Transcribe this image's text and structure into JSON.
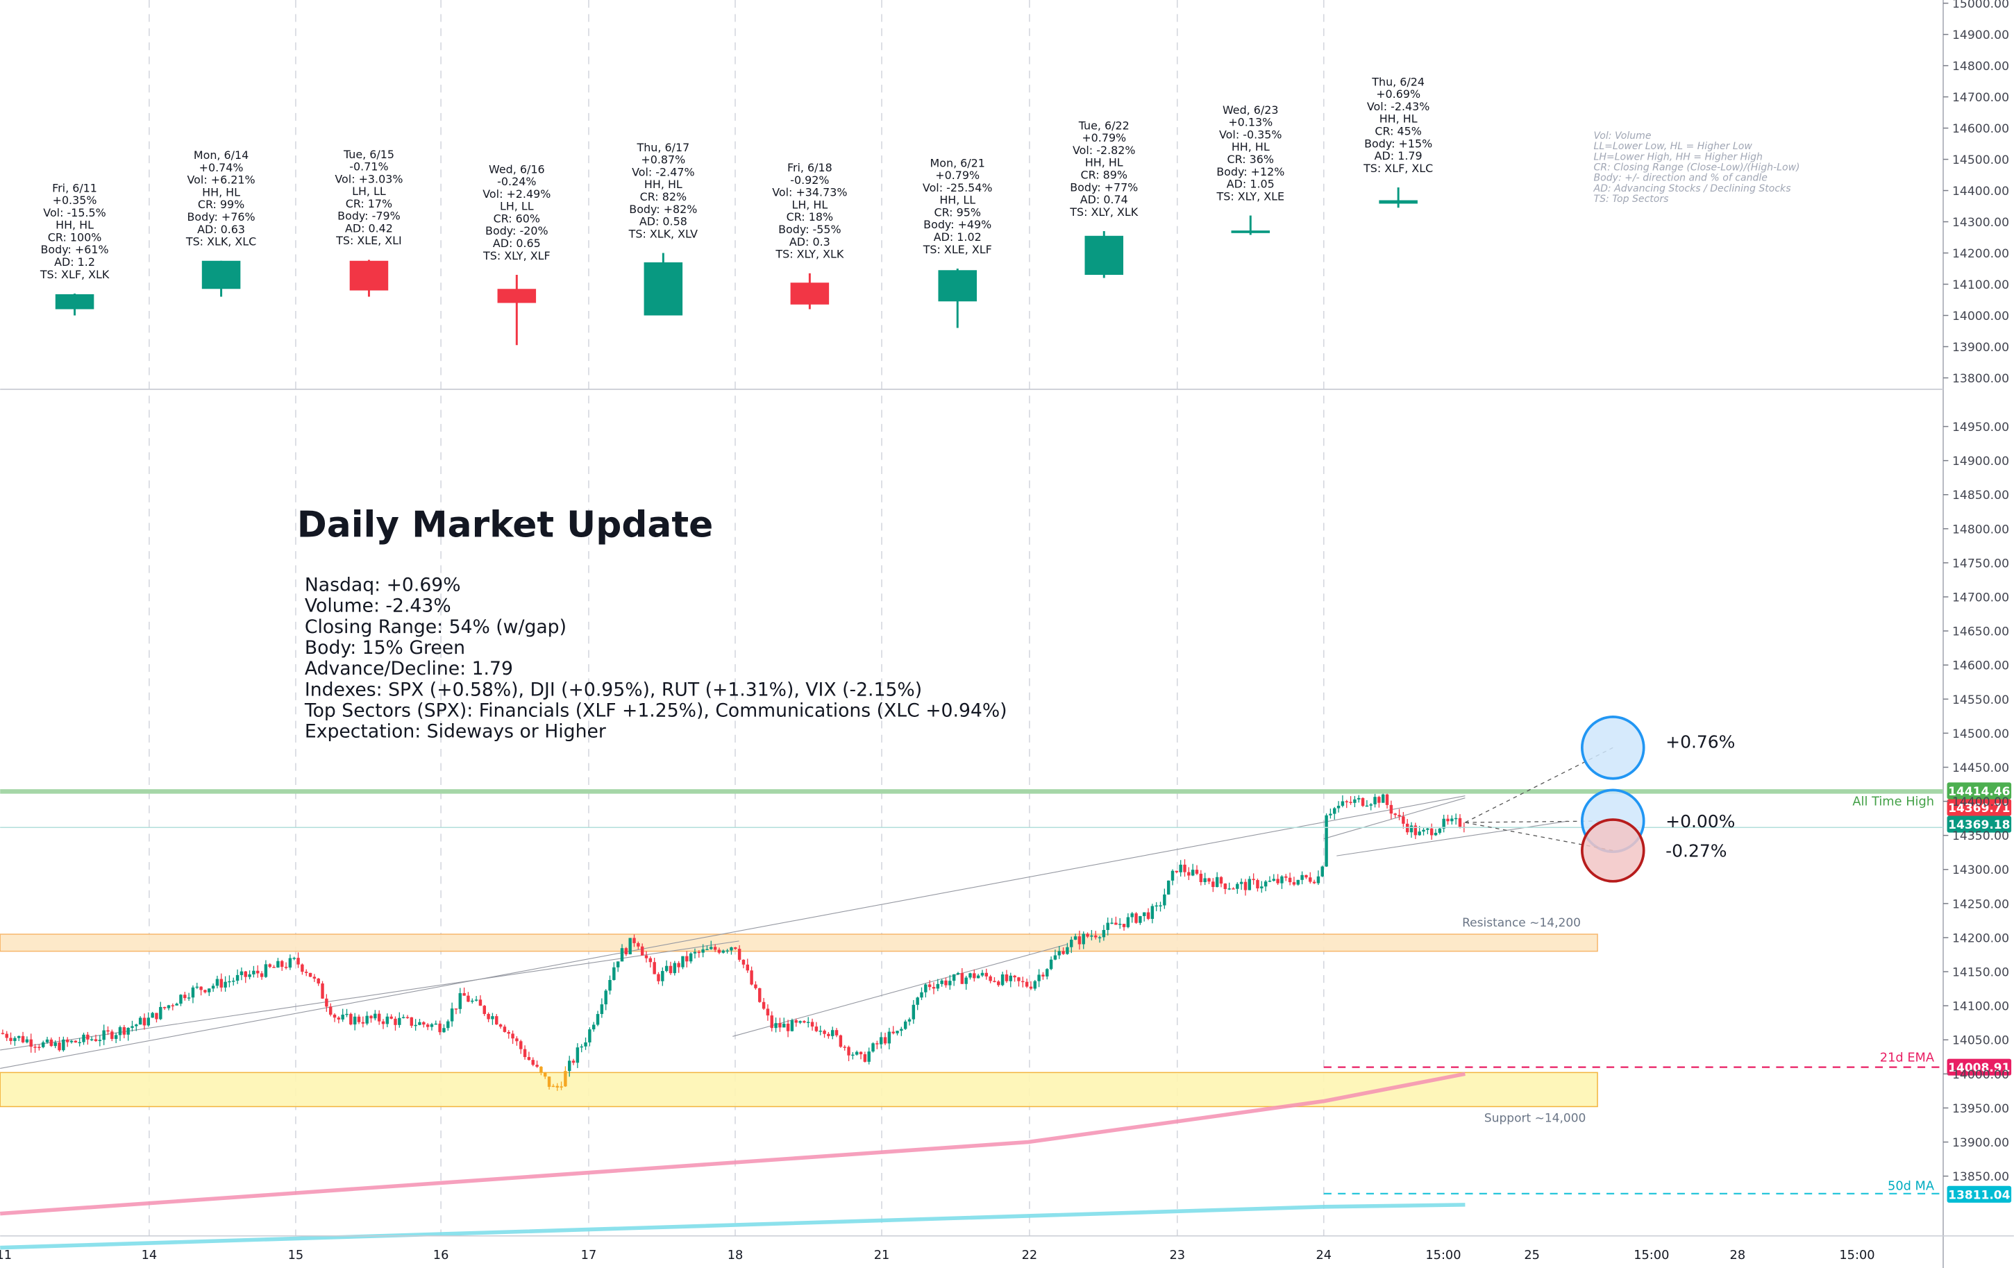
{
  "chart_data": [
    {
      "type": "candlestick",
      "panel": "top",
      "title": "",
      "y_axis": {
        "ticks": [
          13800,
          13900,
          14000,
          14100,
          14200,
          14300,
          14400,
          14500,
          14600,
          14700,
          14800,
          14900,
          15000
        ],
        "tick_labels": [
          "13800.00",
          "13900.00",
          "14000.00",
          "14100.00",
          "14200.00",
          "14300.00",
          "14400.00",
          "14500.00",
          "14600.00",
          "14700.00",
          "14800.00",
          "14900.00",
          "15000.00"
        ],
        "ylim": [
          13780,
          15000
        ]
      },
      "days": [
        {
          "date": "Fri, 6/11",
          "open": 14020,
          "high": 14070,
          "low": 14000,
          "close": 14068,
          "color": "green",
          "stats": [
            "+0.35%",
            "Vol: -15.5%",
            "HH, HL",
            "CR: 100%",
            "Body: +61%",
            "AD: 1.2",
            "TS: XLF, XLK"
          ]
        },
        {
          "date": "Mon, 6/14",
          "open": 14085,
          "high": 14175,
          "low": 14060,
          "close": 14175,
          "color": "green",
          "stats": [
            "+0.74%",
            "Vol: +6.21%",
            "HH, HL",
            "CR: 99%",
            "Body: +76%",
            "AD: 0.63",
            "TS: XLK, XLC"
          ]
        },
        {
          "date": "Tue, 6/15",
          "open": 14175,
          "high": 14178,
          "low": 14060,
          "close": 14080,
          "color": "red",
          "stats": [
            "-0.71%",
            "Vol: +3.03%",
            "LH, LL",
            "CR: 17%",
            "Body: -79%",
            "AD: 0.42",
            "TS: XLE, XLI"
          ]
        },
        {
          "date": "Wed, 6/16",
          "open": 14085,
          "high": 14130,
          "low": 13905,
          "close": 14040,
          "color": "red",
          "stats": [
            "-0.24%",
            "Vol: +2.49%",
            "LH, LL",
            "CR: 60%",
            "Body: -20%",
            "AD: 0.65",
            "TS: XLY, XLF"
          ]
        },
        {
          "date": "Thu, 6/17",
          "open": 14000,
          "high": 14200,
          "low": 14000,
          "close": 14170,
          "color": "green",
          "stats": [
            "+0.87%",
            "Vol: -2.47%",
            "HH, HL",
            "CR: 82%",
            "Body: +82%",
            "AD: 0.58",
            "TS: XLK, XLV"
          ]
        },
        {
          "date": "Fri, 6/18",
          "open": 14105,
          "high": 14135,
          "low": 14020,
          "close": 14035,
          "color": "red",
          "stats": [
            "-0.92%",
            "Vol: +34.73%",
            "LH, HL",
            "CR: 18%",
            "Body: -55%",
            "AD: 0.3",
            "TS: XLY, XLK"
          ]
        },
        {
          "date": "Mon, 6/21",
          "open": 14045,
          "high": 14150,
          "low": 13960,
          "close": 14145,
          "color": "green",
          "stats": [
            "+0.79%",
            "Vol: -25.54%",
            "HH, LL",
            "CR: 95%",
            "Body: +49%",
            "AD: 1.02",
            "TS: XLE, XLF"
          ]
        },
        {
          "date": "Tue, 6/22",
          "open": 14130,
          "high": 14270,
          "low": 14120,
          "close": 14255,
          "color": "green",
          "stats": [
            "+0.79%",
            "Vol: -2.82%",
            "HH, HL",
            "CR: 89%",
            "Body: +77%",
            "AD: 0.74",
            "TS: XLY, XLK"
          ]
        },
        {
          "date": "Wed, 6/23",
          "open": 14267,
          "high": 14320,
          "low": 14258,
          "close": 14272,
          "color": "green",
          "stats": [
            "+0.13%",
            "Vol: -0.35%",
            "HH, HL",
            "CR: 36%",
            "Body: +12%",
            "AD: 1.05",
            "TS: XLY, XLE"
          ]
        },
        {
          "date": "Thu, 6/24",
          "open": 14358,
          "high": 14410,
          "low": 14345,
          "close": 14369,
          "color": "green",
          "stats": [
            "+0.69%",
            "Vol: -2.43%",
            "HH, HL",
            "CR: 45%",
            "Body: +15%",
            "AD: 1.79",
            "TS: XLF, XLC"
          ]
        }
      ],
      "legend_lines": [
        "Vol: Volume",
        "LL=Lower Low, HL = Higher Low",
        "LH=Lower High, HH = Higher High",
        "CR: Closing Range (Close-Low)/(High-Low)",
        "Body: +/- direction and % of candle",
        "AD: Advancing Stocks / Declining Stocks",
        "TS: Top Sectors"
      ]
    },
    {
      "type": "candlestick",
      "panel": "bottom",
      "title": "",
      "y_axis": {
        "ticks": [
          13850,
          13900,
          13950,
          14000,
          14050,
          14100,
          14150,
          14200,
          14250,
          14300,
          14350,
          14400,
          14450,
          14500,
          14550,
          14600,
          14650,
          14700,
          14750,
          14800,
          14850,
          14900,
          14950
        ],
        "tick_labels": [
          "13850.00",
          "13900.00",
          "13950.00",
          "14000.00",
          "14050.00",
          "14100.00",
          "14150.00",
          "14200.00",
          "14250.00",
          "14300.00",
          "14350.00",
          "14400.00",
          "14450.00",
          "14500.00",
          "14550.00",
          "14600.00",
          "14650.00",
          "14700.00",
          "14750.00",
          "14800.00",
          "14850.00",
          "14900.00",
          "14950.00"
        ],
        "ylim": [
          13795,
          15000
        ]
      },
      "x_axis": {
        "tick_labels": [
          "11",
          "14",
          "15",
          "16",
          "17",
          "18",
          "21",
          "22",
          "23",
          "24",
          "15:00",
          "25",
          "15:00",
          "28",
          "15:00"
        ]
      },
      "price_levels": [
        {
          "label": "All Time High",
          "value": 14414.46,
          "tag": "14414.46",
          "color": "#4caf50"
        },
        {
          "label": "",
          "value": 14369.71,
          "tag": "14369.71",
          "color": "#f23645"
        },
        {
          "label": "",
          "value": 14369.18,
          "tag": "14369.18",
          "color": "#089981"
        },
        {
          "label": "21d EMA",
          "value": 14008.91,
          "tag": "14008.91",
          "color": "#e91e63"
        },
        {
          "label": "50d MA",
          "value": 13811.04,
          "tag": "13811.04",
          "color": "#00bcd4"
        }
      ],
      "zones": [
        {
          "label": "Resistance ~14,200",
          "from": 14180,
          "to": 14205
        },
        {
          "label": "Support ~14,000",
          "from": 13952,
          "to": 14002
        }
      ],
      "projections": [
        {
          "label": "+0.76%",
          "value": 14478,
          "color": "#2196f3"
        },
        {
          "label": "+0.00%",
          "value": 14370,
          "color": "#2196f3"
        },
        {
          "label": "-0.27%",
          "value": 14330,
          "color": "#b71c1c"
        }
      ],
      "ema21": [
        [
          0,
          13795
        ],
        [
          800,
          13900
        ],
        [
          1030,
          13960
        ],
        [
          1140,
          14000
        ]
      ],
      "ma50": [
        [
          0,
          13745
        ],
        [
          1030,
          13805
        ],
        [
          1140,
          13808
        ]
      ]
    }
  ],
  "update": {
    "title": "Daily Market Update",
    "lines": [
      "Nasdaq: +0.69%",
      "Volume: -2.43%",
      "Closing Range: 54% (w/gap)",
      "Body: 15% Green",
      "Advance/Decline: 1.79",
      "Indexes: SPX (+0.58%), DJI (+0.95%), RUT (+1.31%), VIX (-2.15%)",
      "Top Sectors (SPX): Financials (XLF +1.25%), Communications (XLC +0.94%)",
      "Expectation: Sideways or Higher"
    ]
  },
  "colors": {
    "up": "#089981",
    "down": "#f23645",
    "grid": "#d1d4dc"
  }
}
